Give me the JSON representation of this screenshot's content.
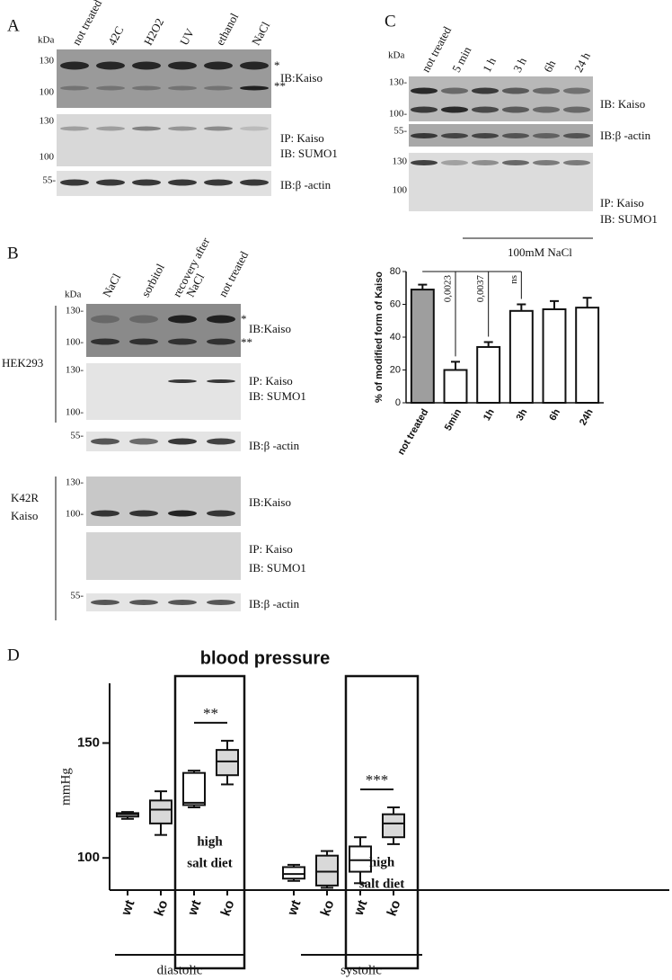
{
  "panel_a": {
    "letter": "A",
    "kda": "kDa",
    "lanes": [
      "not treated",
      "42C",
      "H2O2",
      "UV",
      "ethanol",
      "NaCl"
    ],
    "kaiso_blot": {
      "markers": [
        "130",
        "100"
      ],
      "bands": [
        "*",
        "**"
      ],
      "label": "IB:Kaiso"
    },
    "sumo_blot": {
      "markers": [
        "130",
        "100"
      ],
      "label": [
        "IP: Kaiso",
        "IB: SUMO1"
      ]
    },
    "actin_blot": {
      "marker": "55-",
      "label": "IB:β -actin"
    }
  },
  "panel_b": {
    "letter": "B",
    "kda": "kDa",
    "lanes": [
      "NaCl",
      "sorbitol",
      "recovery after",
      "NaCl",
      "not treated"
    ],
    "hek293": {
      "name": "HEK293",
      "kaiso_blot": {
        "markers": [
          "130-",
          "100-"
        ],
        "bands": [
          "*",
          "**"
        ],
        "label": "IB:Kaiso"
      },
      "sumo_blot": {
        "markers": [
          "130-",
          "100-"
        ],
        "label": [
          "IP: Kaiso",
          "IB: SUMO1"
        ]
      },
      "actin_blot": {
        "marker": "55-",
        "label": "IB:β -actin"
      }
    },
    "k42r": {
      "name": [
        "K42R",
        "Kaiso"
      ],
      "kaiso_blot": {
        "markers": [
          "130-",
          "100-"
        ],
        "label": "IB:Kaiso"
      },
      "sumo_blot": {
        "label": [
          "IP: Kaiso",
          "IB: SUMO1"
        ]
      },
      "actin_blot": {
        "marker": "55-",
        "label": "IB:β -actin"
      }
    }
  },
  "panel_c": {
    "letter": "C",
    "kda": "kDa",
    "lanes": [
      "not treated",
      "5 min",
      "1 h",
      "3 h",
      "6h",
      "24 h"
    ],
    "kaiso_blot": {
      "markers": [
        "130-",
        "100-"
      ],
      "label": "IB: Kaiso"
    },
    "actin_blot": {
      "marker": "55-",
      "label": "IB:β -actin"
    },
    "sumo_blot": {
      "markers": [
        "130",
        "100"
      ],
      "label": [
        "IP: Kaiso",
        "IB: SUMO1"
      ]
    },
    "treatment": "100mM  NaCl"
  },
  "panel_d": {
    "letter": "D"
  },
  "chart_data": [
    {
      "type": "bar",
      "y_label": "% of modified form of Kaiso",
      "categories": [
        "not treated",
        "5min",
        "1h",
        "3h",
        "6h",
        "24h"
      ],
      "values": [
        69,
        20,
        34,
        56,
        57,
        58
      ],
      "errors": [
        3,
        5,
        3,
        4,
        5,
        6
      ],
      "colors": [
        "#9e9e9e",
        "#ffffff",
        "#ffffff",
        "#ffffff",
        "#ffffff",
        "#ffffff"
      ],
      "ylim": [
        0,
        80
      ],
      "yticks": [
        0,
        20,
        40,
        60,
        80
      ],
      "annotations": [
        "0,0023",
        "0,0037",
        "ns"
      ]
    },
    {
      "type": "box",
      "title": "blood pressure",
      "y_label": "mmHg",
      "categories": [
        "wt",
        "ko",
        "wt",
        "ko",
        "wt",
        "ko",
        "wt",
        "ko"
      ],
      "min": [
        117,
        110,
        122,
        132,
        90,
        87,
        89,
        106
      ],
      "q1": [
        118,
        115,
        123,
        136,
        91,
        88,
        94,
        109
      ],
      "median": [
        119,
        121,
        124,
        142,
        93,
        94,
        99,
        115
      ],
      "q3": [
        119.5,
        125,
        137,
        147,
        96,
        101,
        105,
        119
      ],
      "max": [
        120,
        129,
        138,
        151,
        97,
        103,
        109,
        122
      ],
      "colors": [
        "#ffffff",
        "#d9d9d9",
        "#ffffff",
        "#d9d9d9",
        "#ffffff",
        "#d9d9d9",
        "#ffffff",
        "#d9d9d9"
      ],
      "ylim": [
        86,
        176
      ],
      "yticks": [
        100,
        150
      ],
      "groups": [
        "diastolic",
        "systolic"
      ],
      "frames": [
        {
          "label": [
            "high",
            "salt diet"
          ],
          "significance": "**"
        },
        {
          "label": [
            "high",
            "salt diet"
          ],
          "significance": "***"
        }
      ]
    }
  ]
}
